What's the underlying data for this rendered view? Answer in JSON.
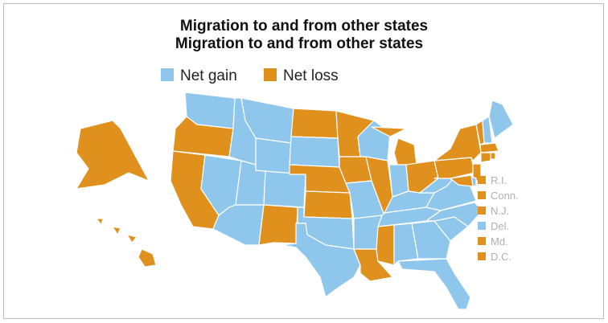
{
  "title_lines": [
    "Migration to and from other states",
    "Migration to and from other states"
  ],
  "legend": [
    {
      "label": "Net gain",
      "color": "#8fc7ec"
    },
    {
      "label": "Net loss",
      "color": "#e0901d"
    }
  ],
  "small_state_labels": [
    "R.I.",
    "Conn.",
    "N.J.",
    "Del.",
    "Md.",
    "D.C."
  ]
}
